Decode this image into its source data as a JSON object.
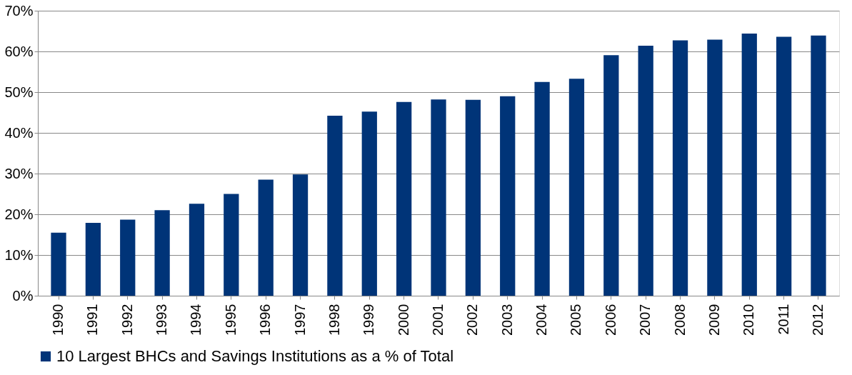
{
  "chart_data": {
    "type": "bar",
    "categories": [
      "1990",
      "1991",
      "1992",
      "1993",
      "1994",
      "1995",
      "1996",
      "1997",
      "1998",
      "1999",
      "2000",
      "2001",
      "2002",
      "2003",
      "2004",
      "2005",
      "2006",
      "2007",
      "2008",
      "2009",
      "2010",
      "2011",
      "2012"
    ],
    "series": [
      {
        "name": "10 Largest BHCs and Savings Institutions as a % of Total",
        "color": "#003478",
        "values": [
          15.5,
          17.9,
          18.7,
          21.0,
          22.6,
          25.0,
          28.5,
          29.8,
          44.2,
          45.2,
          47.6,
          48.2,
          48.1,
          49.0,
          52.5,
          53.3,
          59.1,
          61.4,
          62.7,
          62.9,
          64.4,
          63.6,
          63.9
        ]
      }
    ],
    "ylim": [
      0,
      70
    ],
    "yticks": [
      {
        "value": 0,
        "label": "0%"
      },
      {
        "value": 10,
        "label": "10%"
      },
      {
        "value": 20,
        "label": "20%"
      },
      {
        "value": 30,
        "label": "30%"
      },
      {
        "value": 40,
        "label": "40%"
      },
      {
        "value": 50,
        "label": "50%"
      },
      {
        "value": 60,
        "label": "60%"
      },
      {
        "value": 70,
        "label": "70%"
      }
    ],
    "grid": "y",
    "legend": "bottom"
  }
}
